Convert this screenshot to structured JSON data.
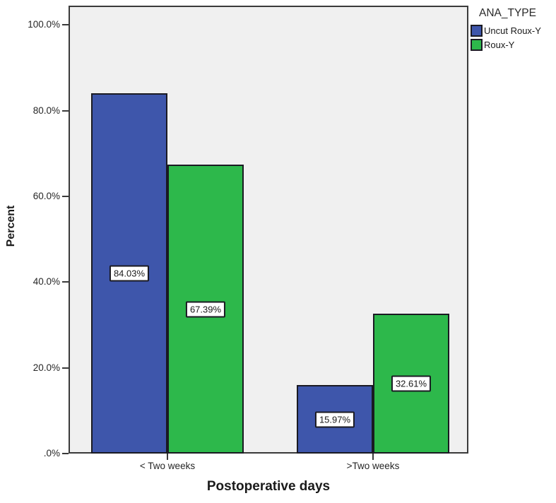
{
  "chart_data": {
    "type": "bar",
    "title": "",
    "xlabel": "Postoperative days",
    "ylabel": "Percent",
    "legend_title": "ANA_TYPE",
    "legend_position": "top-right",
    "categories": [
      "< Two weeks",
      ">Two weeks"
    ],
    "series": [
      {
        "name": "Uncut Roux-Y",
        "color": "#3E56AB",
        "values": [
          84.03,
          15.97
        ],
        "value_labels": [
          "84.03%",
          "15.97%"
        ]
      },
      {
        "name": "Roux-Y",
        "color": "#2DB84B",
        "values": [
          67.39,
          32.61
        ],
        "value_labels": [
          "67.39%",
          "32.61%"
        ]
      }
    ],
    "yticks": [
      {
        "label": ".0%",
        "value": 0
      },
      {
        "label": "20.0%",
        "value": 20
      },
      {
        "label": "40.0%",
        "value": 40
      },
      {
        "label": "60.0%",
        "value": 60
      },
      {
        "label": "80.0%",
        "value": 80
      },
      {
        "label": "100.0%",
        "value": 100
      }
    ],
    "ylim": [
      0,
      104.5
    ],
    "grid": false,
    "plot_background": "#F0F0F0",
    "bar_border_color": "#1A1A22",
    "label_box": {
      "background": "#FFFFFF",
      "border": "#1A1A22"
    }
  }
}
